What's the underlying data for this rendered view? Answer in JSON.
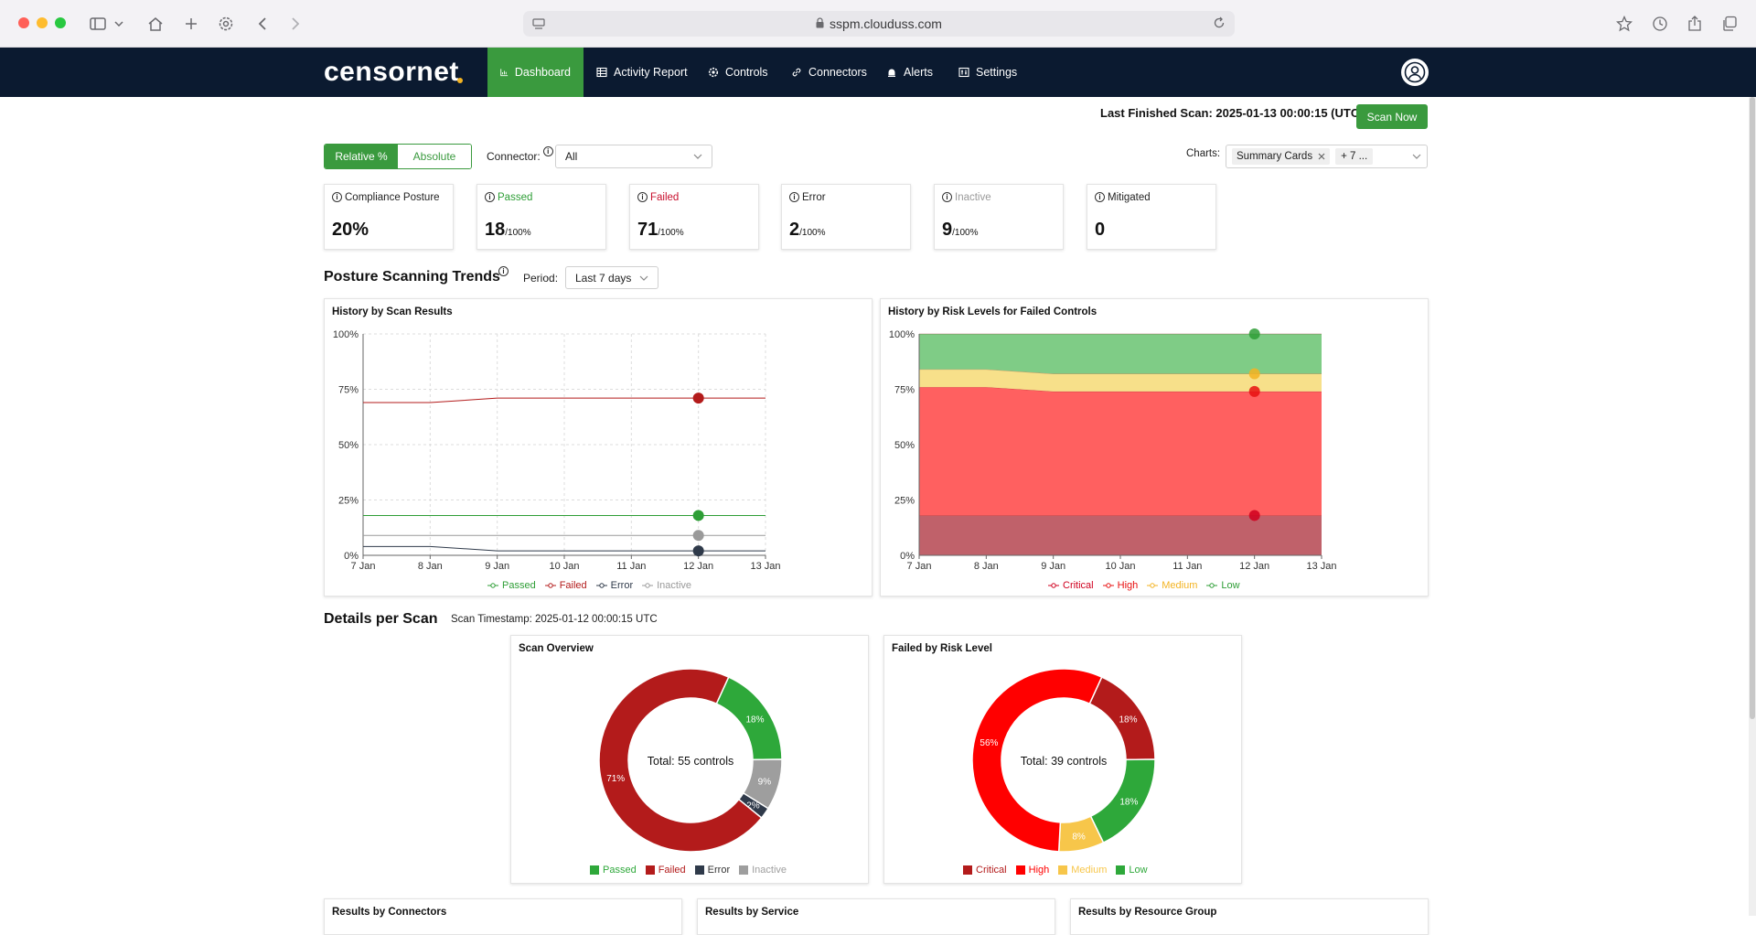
{
  "browser": {
    "url": "sspm.clouduss.com"
  },
  "app": {
    "logo": "censornet",
    "nav": [
      "Dashboard",
      "Activity Report",
      "Controls",
      "Connectors",
      "Alerts",
      "Settings"
    ]
  },
  "header": {
    "last_scan": "Last Finished Scan: 2025-01-13 00:00:15 (UTC)",
    "scan_now": "Scan Now"
  },
  "filters": {
    "toggle": [
      "Relative %",
      "Absolute"
    ],
    "connector_label": "Connector:",
    "connector_value": "All",
    "charts_label": "Charts:",
    "charts_chip": "Summary Cards",
    "charts_more": "+ 7 ..."
  },
  "cards": [
    {
      "label": "Compliance Posture",
      "value": "20%",
      "suffix": "",
      "color": "#333333"
    },
    {
      "label": "Passed",
      "value": "18",
      "suffix": "/100%",
      "color": "#2e9e36"
    },
    {
      "label": "Failed",
      "value": "71",
      "suffix": "/100%",
      "color": "#c8102e"
    },
    {
      "label": "Error",
      "value": "2",
      "suffix": "/100%",
      "color": "#222222"
    },
    {
      "label": "Inactive",
      "value": "9",
      "suffix": "/100%",
      "color": "#9a9a9a"
    },
    {
      "label": "Mitigated",
      "value": "0",
      "suffix": "",
      "color": "#333333"
    }
  ],
  "trends": {
    "title": "Posture Scanning Trends",
    "period_label": "Period:",
    "period_value": "Last 7 days"
  },
  "details": {
    "title": "Details per Scan",
    "timestamp": "Scan Timestamp: 2025-01-12 00:00:15 UTC"
  },
  "bottom_panels": [
    "Results by Connectors",
    "Results by Service",
    "Results by Resource Group"
  ],
  "chart_data": [
    {
      "type": "line",
      "title": "History by Scan Results",
      "x": [
        "7 Jan",
        "8 Jan",
        "9 Jan",
        "10 Jan",
        "11 Jan",
        "12 Jan",
        "13 Jan"
      ],
      "ylim": [
        0,
        100
      ],
      "yticks": [
        "0%",
        "25%",
        "50%",
        "75%",
        "100%"
      ],
      "grid": true,
      "legend_position": "bottom",
      "series": [
        {
          "name": "Passed",
          "color": "#2e9e36",
          "values": [
            18,
            18,
            18,
            18,
            18,
            18,
            18
          ]
        },
        {
          "name": "Failed",
          "color": "#b31b1b",
          "values": [
            69,
            69,
            71,
            71,
            71,
            71,
            71
          ]
        },
        {
          "name": "Error",
          "color": "#2f3a4a",
          "values": [
            4,
            4,
            2,
            2,
            2,
            2,
            2
          ]
        },
        {
          "name": "Inactive",
          "color": "#9a9a9a",
          "values": [
            9,
            9,
            9,
            9,
            9,
            9,
            9
          ]
        }
      ]
    },
    {
      "type": "area",
      "title": "History by Risk Levels for Failed Controls",
      "x": [
        "7 Jan",
        "8 Jan",
        "9 Jan",
        "10 Jan",
        "11 Jan",
        "12 Jan",
        "13 Jan"
      ],
      "ylim": [
        0,
        100
      ],
      "yticks": [
        "0%",
        "25%",
        "50%",
        "75%",
        "100%"
      ],
      "stacked": true,
      "legend_position": "bottom",
      "series": [
        {
          "name": "Critical",
          "color": "#c0616a",
          "values": [
            18,
            18,
            18,
            18,
            18,
            18,
            18
          ]
        },
        {
          "name": "High",
          "color": "#ff6060",
          "values": [
            58,
            58,
            56,
            56,
            56,
            56,
            56
          ]
        },
        {
          "name": "Medium",
          "color": "#f7e08a",
          "values": [
            8,
            8,
            8,
            8,
            8,
            8,
            8
          ]
        },
        {
          "name": "Low",
          "color": "#7fcc86",
          "values": [
            16,
            16,
            18,
            18,
            18,
            18,
            18
          ]
        }
      ],
      "legend_colors": [
        "#d0001f",
        "#e81010",
        "#f3b322",
        "#2e9e36"
      ]
    },
    {
      "type": "pie",
      "title": "Scan Overview",
      "center_label": "Total: 55 controls",
      "legend_position": "bottom",
      "slices": [
        {
          "name": "Passed",
          "value": 18,
          "label": "18%",
          "color": "#2ea83a"
        },
        {
          "name": "Inactive",
          "value": 9,
          "label": "9%",
          "color": "#9e9e9e"
        },
        {
          "name": "Error",
          "value": 2,
          "label": "2%",
          "color": "#2f3a4a"
        },
        {
          "name": "Failed",
          "value": 71,
          "label": "71%",
          "color": "#b31b1b"
        }
      ],
      "legend": [
        {
          "name": "Passed",
          "color": "#2ea83a"
        },
        {
          "name": "Failed",
          "color": "#b31b1b"
        },
        {
          "name": "Error",
          "color": "#2f3a4a"
        },
        {
          "name": "Inactive",
          "color": "#9e9e9e"
        }
      ]
    },
    {
      "type": "pie",
      "title": "Failed by Risk Level",
      "center_label": "Total: 39 controls",
      "legend_position": "bottom",
      "slices": [
        {
          "name": "Critical",
          "value": 18,
          "label": "18%",
          "color": "#b31b1b"
        },
        {
          "name": "Low",
          "value": 18,
          "label": "18%",
          "color": "#2ea83a"
        },
        {
          "name": "Medium",
          "value": 8,
          "label": "8%",
          "color": "#f7c64a"
        },
        {
          "name": "High",
          "value": 56,
          "label": "56%",
          "color": "#ff0000"
        }
      ],
      "legend": [
        {
          "name": "Critical",
          "color": "#b31b1b"
        },
        {
          "name": "High",
          "color": "#ff0000"
        },
        {
          "name": "Medium",
          "color": "#f7c64a"
        },
        {
          "name": "Low",
          "color": "#2ea83a"
        }
      ]
    }
  ]
}
